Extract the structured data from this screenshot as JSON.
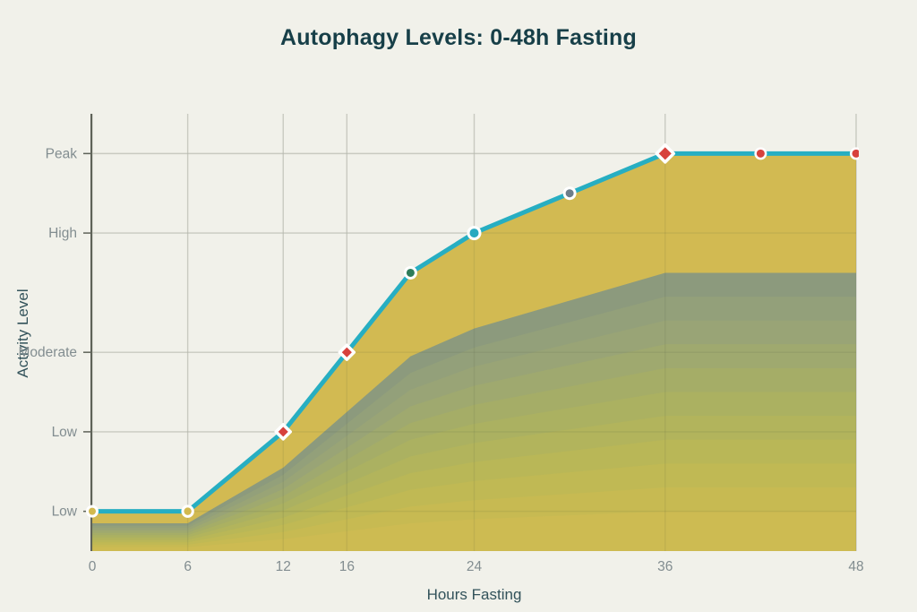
{
  "colors": {
    "background": "#f1f1ea",
    "title": "#173f48",
    "axis_title": "#32525a",
    "tick_label": "#828d90",
    "axis_line": "#5e6258",
    "grid": "#d9d9d1",
    "grid_overlay": "rgba(70,75,60,0.10)",
    "marker_ring": "#ffffff"
  },
  "chart_data": {
    "type": "area",
    "title": "Autophagy Levels: 0-48h Fasting",
    "xlabel": "Hours Fasting",
    "ylabel": "Activity Level",
    "x": [
      0,
      6,
      12,
      16,
      20,
      24,
      30,
      36,
      42,
      48
    ],
    "values": [
      10,
      10,
      30,
      50,
      70,
      80,
      90,
      100,
      100,
      100
    ],
    "xlim": [
      0,
      48
    ],
    "ylim": [
      0,
      110
    ],
    "x_ticks": [
      0,
      6,
      12,
      16,
      24,
      36,
      48
    ],
    "y_ticks": [
      {
        "value": 10,
        "label": "Low"
      },
      {
        "value": 30,
        "label": "Low"
      },
      {
        "value": 50,
        "label": "Moderate"
      },
      {
        "value": 80,
        "label": "High"
      },
      {
        "value": 100,
        "label": "Peak"
      }
    ],
    "grid": true,
    "legend": false,
    "line_color": "#27aec2",
    "area_color": "#d2ba52",
    "echo_layers": [
      {
        "scale": 0.7,
        "color": "#8c9a7d"
      },
      {
        "scale": 0.64,
        "color": "#93a07a"
      },
      {
        "scale": 0.58,
        "color": "#99a476"
      },
      {
        "scale": 0.52,
        "color": "#9fa96f"
      },
      {
        "scale": 0.46,
        "color": "#a5ad67"
      },
      {
        "scale": 0.4,
        "color": "#abb161"
      },
      {
        "scale": 0.34,
        "color": "#b2b45c"
      },
      {
        "scale": 0.28,
        "color": "#b9b757"
      },
      {
        "scale": 0.22,
        "color": "#c0b954"
      },
      {
        "scale": 0.16,
        "color": "#c7ba52"
      },
      {
        "scale": 0.1,
        "color": "#cdbb52"
      }
    ],
    "markers": [
      {
        "x": 0,
        "shape": "circle",
        "color": "#d2b94e",
        "radius": 4.0,
        "ring": 3.0
      },
      {
        "x": 6,
        "shape": "circle",
        "color": "#d2b94e",
        "radius": 4.2,
        "ring": 3.0
      },
      {
        "x": 12,
        "shape": "diamond",
        "color": "#d7413c",
        "radius": 8.0,
        "ring": 3.5
      },
      {
        "x": 16,
        "shape": "diamond",
        "color": "#d7413c",
        "radius": 8.0,
        "ring": 3.5
      },
      {
        "x": 20,
        "shape": "circle",
        "color": "#2e7c59",
        "radius": 4.5,
        "ring": 3.0
      },
      {
        "x": 24,
        "shape": "circle",
        "color": "#28a9c0",
        "radius": 5.0,
        "ring": 3.0
      },
      {
        "x": 30,
        "shape": "circle",
        "color": "#6d7d8a",
        "radius": 4.5,
        "ring": 3.0
      },
      {
        "x": 36,
        "shape": "diamond",
        "color": "#d7413c",
        "radius": 9.5,
        "ring": 3.5
      },
      {
        "x": 42,
        "shape": "circle",
        "color": "#d7413c",
        "radius": 4.5,
        "ring": 2.5
      },
      {
        "x": 48,
        "shape": "circle",
        "color": "#d7413c",
        "radius": 4.5,
        "ring": 2.5
      }
    ]
  }
}
